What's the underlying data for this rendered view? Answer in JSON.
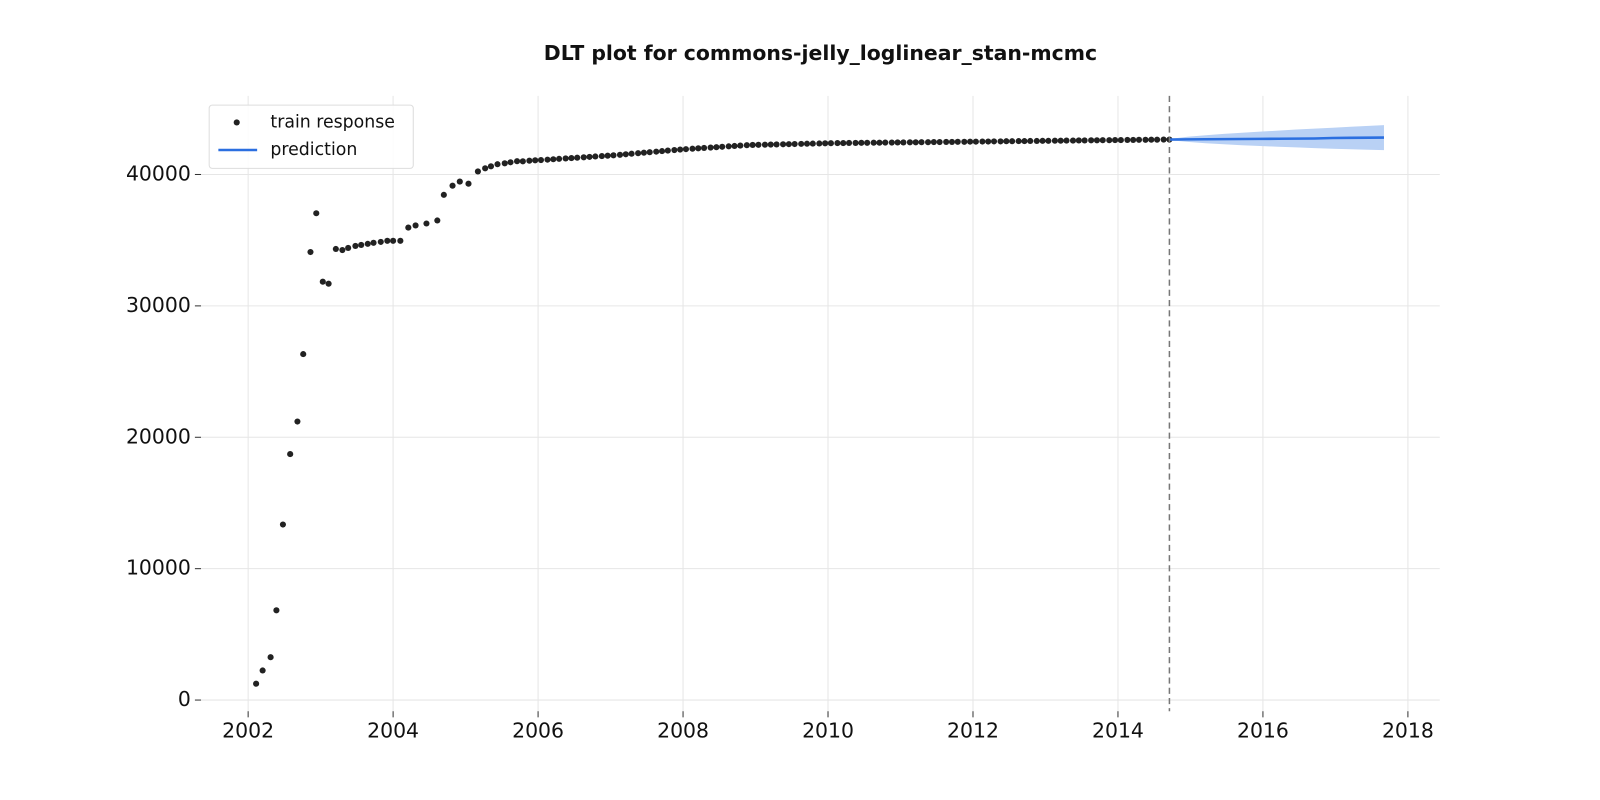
{
  "chart_data": {
    "type": "scatter-forecast",
    "title": "DLT plot for commons-jelly_loglinear_stan-mcmc",
    "xlim": [
      2001.35,
      2018.44
    ],
    "ylim": [
      -850,
      45980
    ],
    "xticks": [
      2002,
      2004,
      2006,
      2008,
      2010,
      2012,
      2014,
      2016,
      2018
    ],
    "yticks": [
      0,
      10000,
      20000,
      30000,
      40000
    ],
    "grid": true,
    "legend": "upper left",
    "vline": 2014.71,
    "series": [
      {
        "name": "train response",
        "color": "#222222",
        "x": [
          2002.11,
          2002.2,
          2002.31,
          2002.39,
          2002.48,
          2002.58,
          2002.68,
          2002.76,
          2002.86,
          2002.94,
          2003.03,
          2003.11,
          2003.21,
          2003.3,
          2003.38,
          2003.48,
          2003.56,
          2003.65,
          2003.73,
          2003.83,
          2003.92,
          2004.0,
          2004.1,
          2004.21,
          2004.31,
          2004.46,
          2004.61,
          2004.7,
          2004.82,
          2004.92,
          2005.04,
          2005.17,
          2005.27,
          2005.35,
          2005.44,
          2005.54,
          2005.62,
          2005.71,
          2005.79,
          2005.88,
          2005.96,
          2006.04,
          2006.13,
          2006.21,
          2006.29,
          2006.38,
          2006.46,
          2006.54,
          2006.63,
          2006.71,
          2006.79,
          2006.88,
          2006.96,
          2007.04,
          2007.13,
          2007.21,
          2007.29,
          2007.38,
          2007.46,
          2007.54,
          2007.63,
          2007.71,
          2007.79,
          2007.88,
          2007.96,
          2008.04,
          2008.13,
          2008.21,
          2008.29,
          2008.38,
          2008.46,
          2008.54,
          2008.63,
          2008.71,
          2008.79,
          2008.88,
          2008.96,
          2009.04,
          2009.13,
          2009.21,
          2009.29,
          2009.38,
          2009.46,
          2009.54,
          2009.63,
          2009.71,
          2009.79,
          2009.88,
          2009.96,
          2010.04,
          2010.13,
          2010.21,
          2010.29,
          2010.38,
          2010.46,
          2010.54,
          2010.63,
          2010.71,
          2010.79,
          2010.88,
          2010.96,
          2011.04,
          2011.13,
          2011.21,
          2011.29,
          2011.38,
          2011.46,
          2011.54,
          2011.63,
          2011.71,
          2011.79,
          2011.88,
          2011.96,
          2012.04,
          2012.13,
          2012.21,
          2012.29,
          2012.38,
          2012.46,
          2012.54,
          2012.63,
          2012.71,
          2012.79,
          2012.88,
          2012.96,
          2013.04,
          2013.13,
          2013.21,
          2013.29,
          2013.38,
          2013.46,
          2013.54,
          2013.63,
          2013.71,
          2013.79,
          2013.88,
          2013.96,
          2014.04,
          2014.13,
          2014.21,
          2014.29,
          2014.38,
          2014.46,
          2014.54,
          2014.63,
          2014.71
        ],
        "values": [
          1243,
          2250,
          3260,
          6830,
          13360,
          18720,
          21200,
          26330,
          34100,
          37050,
          31840,
          31690,
          34330,
          34250,
          34410,
          34560,
          34640,
          34720,
          34800,
          34870,
          34950,
          34950,
          34950,
          35960,
          36120,
          36270,
          36500,
          38450,
          39150,
          39460,
          39300,
          40230,
          40470,
          40620,
          40780,
          40850,
          40930,
          41010,
          41000,
          41050,
          41080,
          41100,
          41130,
          41160,
          41190,
          41220,
          41250,
          41280,
          41310,
          41340,
          41370,
          41400,
          41430,
          41460,
          41500,
          41540,
          41580,
          41620,
          41660,
          41700,
          41740,
          41780,
          41820,
          41860,
          41900,
          41930,
          41960,
          41990,
          42020,
          42050,
          42080,
          42110,
          42140,
          42170,
          42200,
          42230,
          42250,
          42260,
          42270,
          42280,
          42290,
          42300,
          42310,
          42320,
          42330,
          42340,
          42350,
          42360,
          42370,
          42380,
          42390,
          42390,
          42400,
          42400,
          42410,
          42410,
          42420,
          42420,
          42430,
          42430,
          42440,
          42440,
          42450,
          42450,
          42460,
          42460,
          42470,
          42470,
          42480,
          42480,
          42490,
          42490,
          42500,
          42500,
          42510,
          42510,
          42520,
          42520,
          42530,
          42530,
          42540,
          42540,
          42550,
          42550,
          42560,
          42560,
          42570,
          42570,
          42580,
          42580,
          42590,
          42590,
          42600,
          42600,
          42610,
          42610,
          42620,
          42620,
          42630,
          42630,
          42640,
          42640,
          42650,
          42650,
          42660,
          42660
        ]
      },
      {
        "name": "prediction",
        "color": "#2b6fe0",
        "band_color": "#b9d1f5",
        "x": [
          2014.71,
          2014.96,
          2015.21,
          2015.46,
          2015.71,
          2015.96,
          2016.21,
          2016.46,
          2016.71,
          2016.96,
          2017.21,
          2017.46,
          2017.67
        ],
        "values": [
          42660,
          42670,
          42680,
          42690,
          42700,
          42710,
          42720,
          42730,
          42740,
          42780,
          42790,
          42800,
          42810
        ],
        "lower": [
          42620,
          42480,
          42380,
          42300,
          42230,
          42170,
          42110,
          42060,
          42010,
          41960,
          41920,
          41880,
          41850
        ],
        "upper": [
          42700,
          42870,
          42990,
          43090,
          43180,
          43260,
          43340,
          43420,
          43490,
          43560,
          43630,
          43700,
          43760
        ]
      }
    ]
  }
}
